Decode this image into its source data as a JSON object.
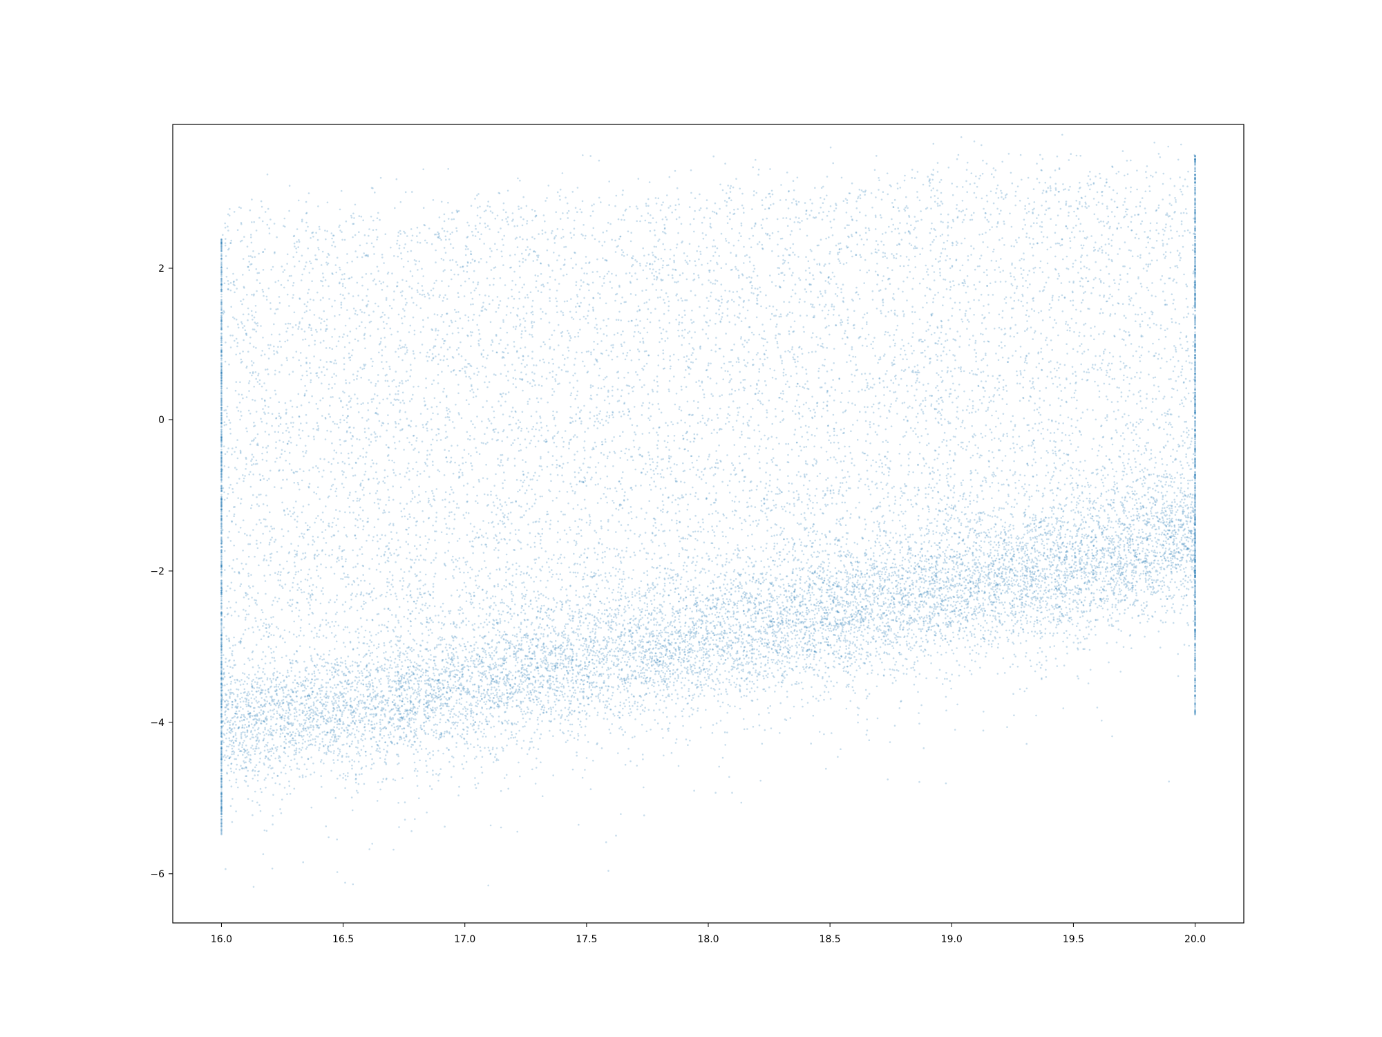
{
  "chart_data": {
    "type": "scatter",
    "title": "",
    "xlabel": "",
    "ylabel": "",
    "xlim": [
      15.8,
      20.2
    ],
    "ylim": [
      -6.65,
      3.9
    ],
    "xticks": [
      16.0,
      16.5,
      17.0,
      17.5,
      18.0,
      18.5,
      19.0,
      19.5,
      20.0
    ],
    "xtick_labels": [
      "16.0",
      "16.5",
      "17.0",
      "17.5",
      "18.0",
      "18.5",
      "19.0",
      "19.5",
      "20.0"
    ],
    "yticks": [
      -6,
      -4,
      -2,
      0,
      2
    ],
    "ytick_labels": [
      "−6",
      "−4",
      "−2",
      "0",
      "2"
    ],
    "grid": false,
    "legend": "none",
    "marker_color": "#1f77b4",
    "marker_alpha": 0.25,
    "series": [
      {
        "description_values": "dense scatter",
        "components": [
          {
            "kind": "diffuse_cloud",
            "x_range": [
              16.0,
              20.0
            ],
            "y_bottom_at_x_start": -3.0,
            "y_bottom_at_x_end": -2.0,
            "y_top_at_x_start": 2.2,
            "y_top_at_x_end": 3.0
          },
          {
            "kind": "dense_band",
            "x": [
              16.0,
              16.5,
              17.0,
              17.5,
              18.0,
              18.5,
              19.0,
              19.5,
              20.0
            ],
            "y_center": [
              -4.0,
              -3.8,
              -3.5,
              -3.2,
              -2.95,
              -2.6,
              -2.3,
              -2.0,
              -1.6
            ],
            "y_spread": 0.45
          },
          {
            "kind": "vertical_line",
            "x": 16.0,
            "y_range": [
              -5.5,
              2.4
            ]
          },
          {
            "kind": "vertical_line",
            "x": 20.0,
            "y_range": [
              -3.9,
              3.5
            ]
          }
        ]
      }
    ]
  }
}
